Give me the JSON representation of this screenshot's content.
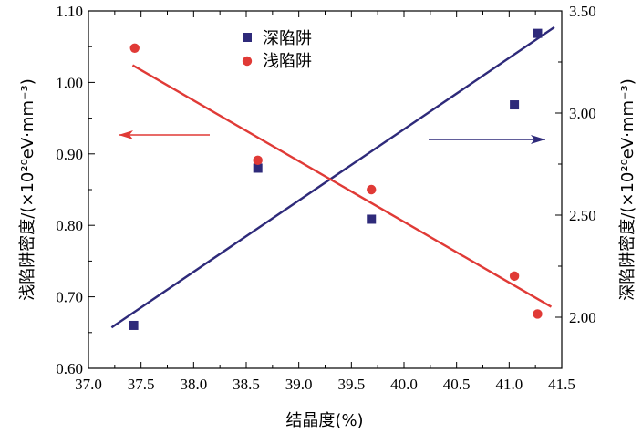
{
  "chart_data": {
    "type": "scatter",
    "xlabel": "结晶度(%)",
    "ylabel_left": "浅陷阱密度/(×10²⁰eV·mm⁻³)",
    "ylabel_right": "深陷阱密度/(×10²⁰eV·mm⁻³)",
    "xlim": [
      37.0,
      41.5
    ],
    "ylim_left": [
      0.6,
      1.1
    ],
    "ylim_right": [
      1.75,
      3.5
    ],
    "xticks": [
      "37.0",
      "37.5",
      "38.0",
      "38.5",
      "39.0",
      "39.5",
      "40.0",
      "40.5",
      "41.0",
      "41.5"
    ],
    "yticks_left": [
      "0.60",
      "0.70",
      "0.80",
      "0.90",
      "1.00",
      "1.10"
    ],
    "yticks_right": [
      "2.00",
      "2.50",
      "3.00",
      "3.50"
    ],
    "series": [
      {
        "name": "深陷阱",
        "axis": "right",
        "marker": "square",
        "color": "#2e2a7a",
        "points": [
          [
            37.43,
            1.96
          ],
          [
            38.61,
            2.73
          ],
          [
            39.69,
            2.48
          ],
          [
            41.05,
            3.04
          ],
          [
            41.27,
            3.39
          ]
        ],
        "fit": [
          [
            37.22,
            1.95
          ],
          [
            41.43,
            3.42
          ]
        ]
      },
      {
        "name": "浅陷阱",
        "axis": "left",
        "marker": "circle",
        "color": "#e03a36",
        "points": [
          [
            37.44,
            1.048
          ],
          [
            38.61,
            0.891
          ],
          [
            39.69,
            0.85
          ],
          [
            41.05,
            0.729
          ],
          [
            41.27,
            0.676
          ]
        ],
        "fit": [
          [
            37.42,
            1.024
          ],
          [
            41.4,
            0.686
          ]
        ]
      }
    ],
    "arrows": [
      {
        "direction": "left",
        "color": "#e03a36"
      },
      {
        "direction": "right",
        "color": "#2e2a7a"
      }
    ],
    "legend_position": "top-center",
    "grid": false
  }
}
